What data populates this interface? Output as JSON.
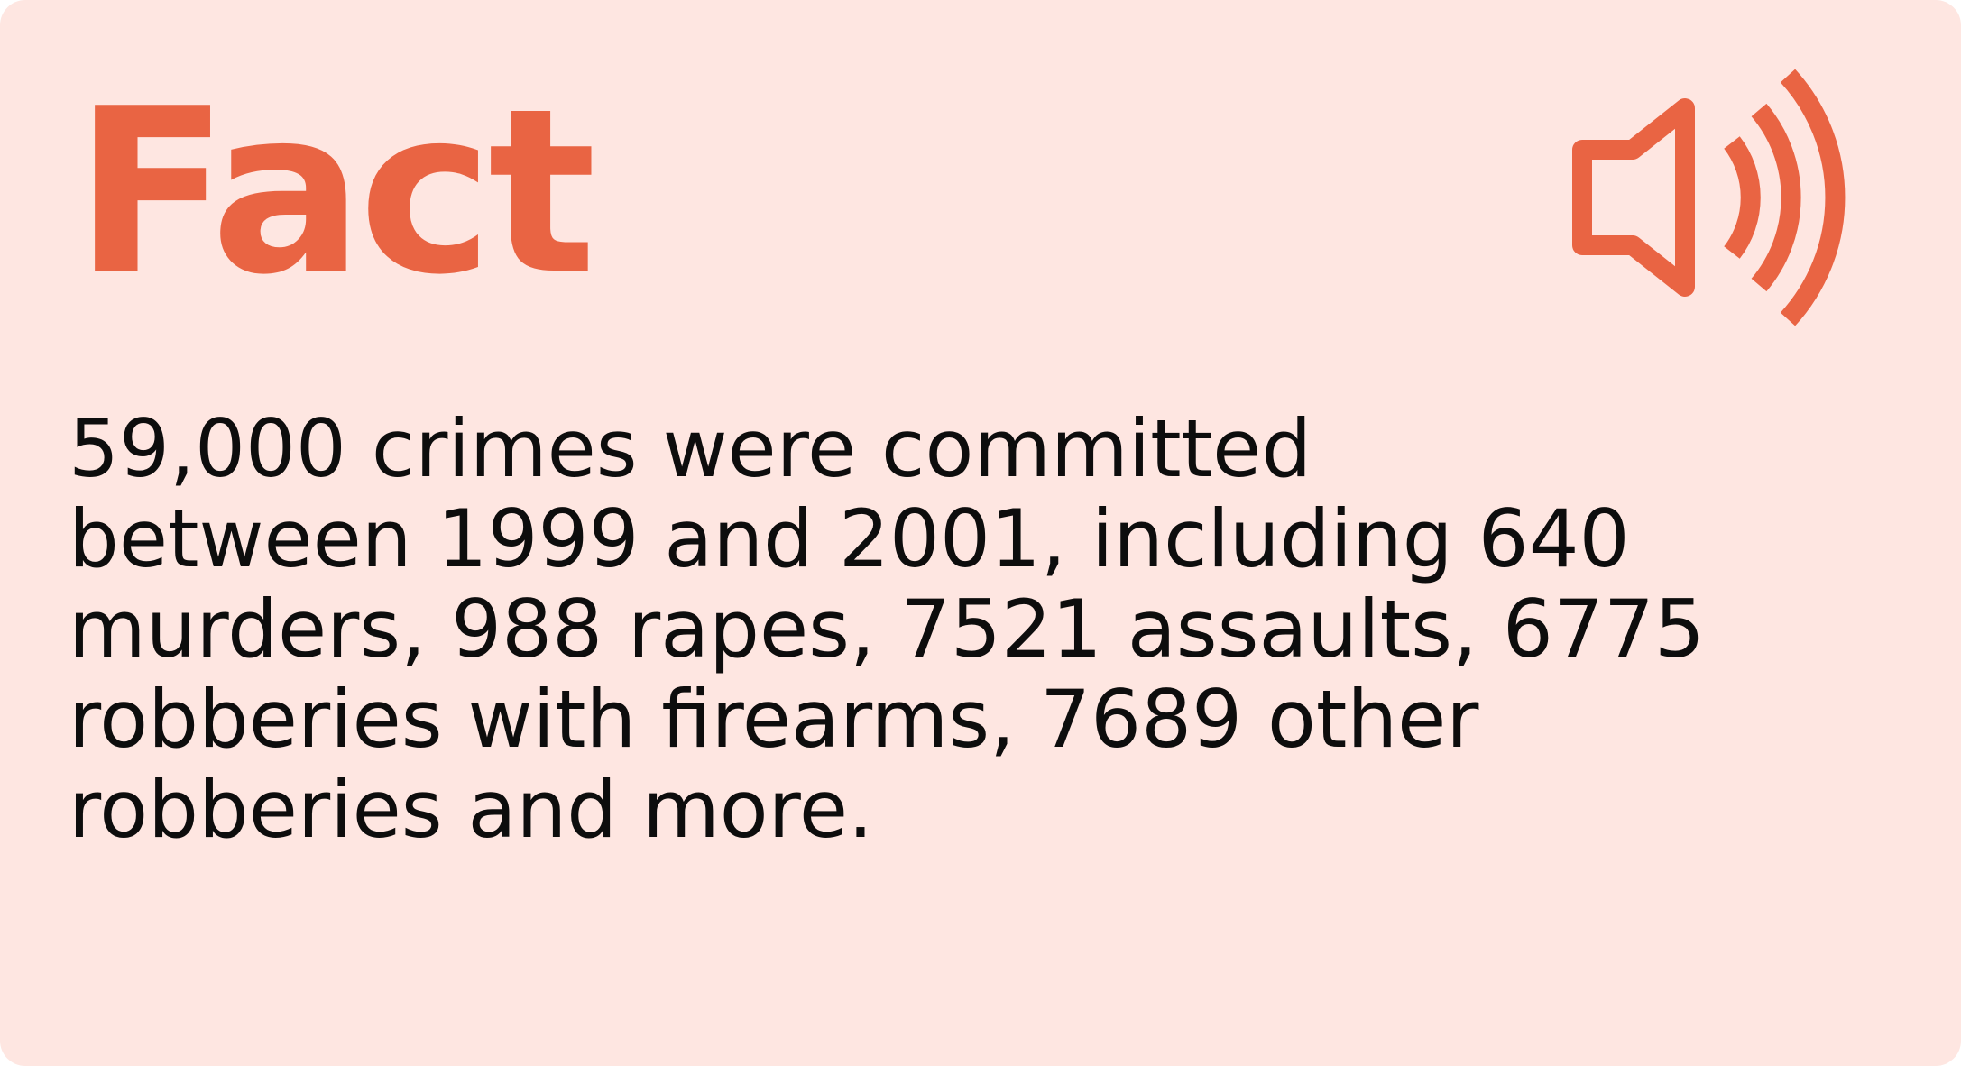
{
  "card": {
    "title": "Fact",
    "audio_icon": "speaker-volume-icon",
    "lines": [
      "59,000 crimes were committed",
      "between 1999 and 2001, including 640",
      "murders, 988 rapes, 7521 assaults, 6775",
      "robberies with firearms, 7689 other",
      "robberies and more."
    ]
  },
  "colors": {
    "background": "#fee6e1",
    "accent": "#e96443",
    "text": "#0d0d0d"
  }
}
